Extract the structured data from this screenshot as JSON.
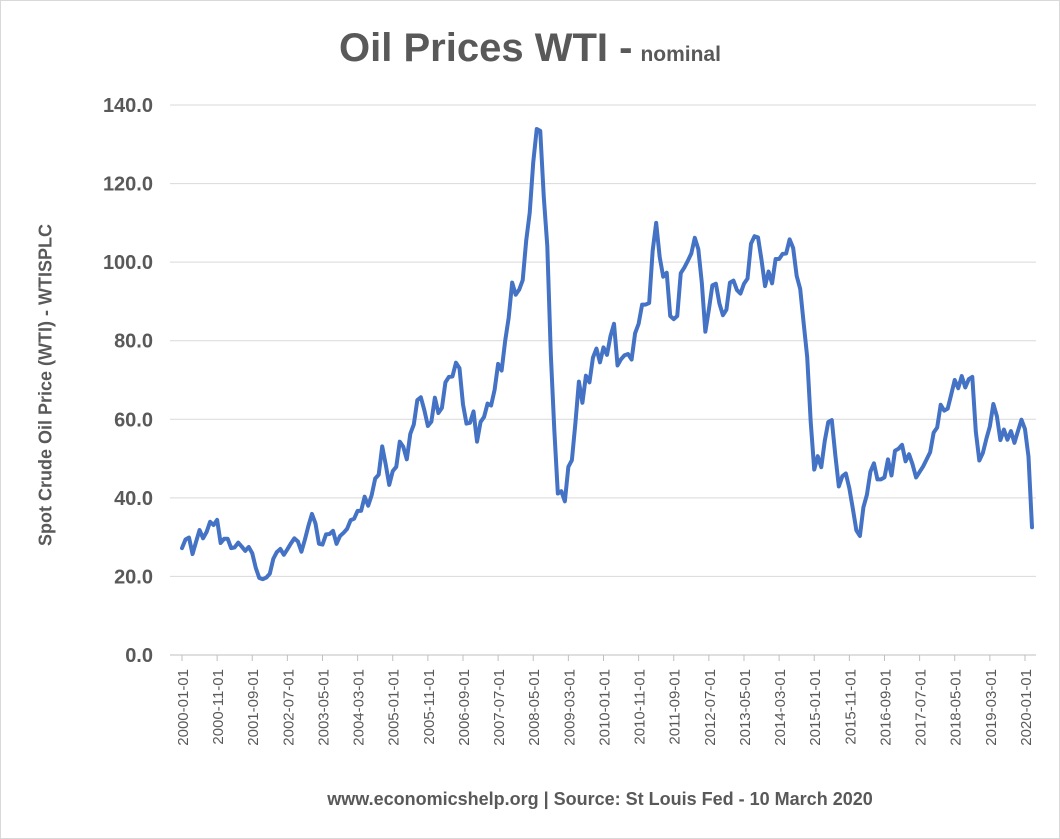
{
  "chart_data": {
    "type": "line",
    "title": "Oil Prices WTI -",
    "subtitle": "nominal",
    "ylabel": "Spot Crude Oil Price (WTI) - WTISPLC",
    "xlabel": "",
    "source": "www.economicshelp.org | Source: St Louis Fed - 10 March 2020",
    "ylim": [
      0,
      140
    ],
    "yticks": [
      "0.0",
      "20.0",
      "40.0",
      "60.0",
      "80.0",
      "100.0",
      "120.0",
      "140.0"
    ],
    "grid": true,
    "line_color": "#4472c4",
    "xticks": [
      "2000-01-01",
      "2000-11-01",
      "2001-09-01",
      "2002-07-01",
      "2003-05-01",
      "2004-03-01",
      "2005-01-01",
      "2005-11-01",
      "2006-09-01",
      "2007-07-01",
      "2008-05-01",
      "2009-03-01",
      "2010-01-01",
      "2010-11-01",
      "2011-09-01",
      "2012-07-01",
      "2013-05-01",
      "2014-03-01",
      "2015-01-01",
      "2015-11-01",
      "2016-09-01",
      "2017-07-01",
      "2018-05-01",
      "2019-03-01",
      "2020-01-01"
    ],
    "xtick_step_months": 10,
    "series": [
      {
        "name": "WTISPLC",
        "start": "2000-01-01",
        "frequency": "monthly",
        "values": [
          27.2,
          29.4,
          29.9,
          25.7,
          28.8,
          31.8,
          29.7,
          31.3,
          33.9,
          33.1,
          34.4,
          28.5,
          29.6,
          29.6,
          27.2,
          27.4,
          28.6,
          27.6,
          26.5,
          27.5,
          25.9,
          22.2,
          19.6,
          19.3,
          19.7,
          20.7,
          24.5,
          26.2,
          27.0,
          25.5,
          26.9,
          28.4,
          29.7,
          28.9,
          26.3,
          29.4,
          32.9,
          35.9,
          33.5,
          28.3,
          28.1,
          30.7,
          30.8,
          31.6,
          28.3,
          30.3,
          31.1,
          32.1,
          34.3,
          34.7,
          36.7,
          36.7,
          40.3,
          38.0,
          40.7,
          44.9,
          45.9,
          53.1,
          48.5,
          43.3,
          46.8,
          47.9,
          54.3,
          53.0,
          49.8,
          56.3,
          58.7,
          64.9,
          65.6,
          62.3,
          58.3,
          59.4,
          65.5,
          61.6,
          62.9,
          69.4,
          70.8,
          70.9,
          74.4,
          73.0,
          63.8,
          58.9,
          59.1,
          62.0,
          54.3,
          59.3,
          60.6,
          64.0,
          63.5,
          67.5,
          74.1,
          72.4,
          79.9,
          85.8,
          94.8,
          91.7,
          93.0,
          95.4,
          105.5,
          112.6,
          125.4,
          133.9,
          133.4,
          116.6,
          104.1,
          76.6,
          57.3,
          41.1,
          41.7,
          39.1,
          47.9,
          49.6,
          59.0,
          69.6,
          64.2,
          71.1,
          69.4,
          75.7,
          78.0,
          74.5,
          78.3,
          76.4,
          81.2,
          84.3,
          73.7,
          75.3,
          76.3,
          76.6,
          75.2,
          81.9,
          84.3,
          89.2,
          89.2,
          89.6,
          102.9,
          110.0,
          101.3,
          96.3,
          97.3,
          86.3,
          85.5,
          86.3,
          97.2,
          98.6,
          100.3,
          102.2,
          106.2,
          103.3,
          94.7,
          82.3,
          87.9,
          94.1,
          94.5,
          89.5,
          86.5,
          87.9,
          94.8,
          95.3,
          92.9,
          92.0,
          94.5,
          95.8,
          104.7,
          106.6,
          106.3,
          100.5,
          93.9,
          97.6,
          94.6,
          100.8,
          100.8,
          102.1,
          102.2,
          105.8,
          103.6,
          96.5,
          93.2,
          84.4,
          75.8,
          59.3,
          47.2,
          50.6,
          47.8,
          54.5,
          59.3,
          59.8,
          50.9,
          42.9,
          45.5,
          46.2,
          42.4,
          37.2,
          31.7,
          30.3,
          37.6,
          40.8,
          46.7,
          48.8,
          44.7,
          44.7,
          45.2,
          49.8,
          45.7,
          52.0,
          52.5,
          53.5,
          49.3,
          51.1,
          48.5,
          45.2,
          46.6,
          48.0,
          49.8,
          51.6,
          56.6,
          57.9,
          63.7,
          62.2,
          62.7,
          66.3,
          70.0,
          67.9,
          71.0,
          68.1,
          70.2,
          70.8,
          56.9,
          49.5,
          51.4,
          55.0,
          58.2,
          63.9,
          60.8,
          54.7,
          57.4,
          54.8,
          57.0,
          54.0,
          57.0,
          59.9,
          57.5,
          50.5,
          32.5
        ]
      }
    ]
  }
}
